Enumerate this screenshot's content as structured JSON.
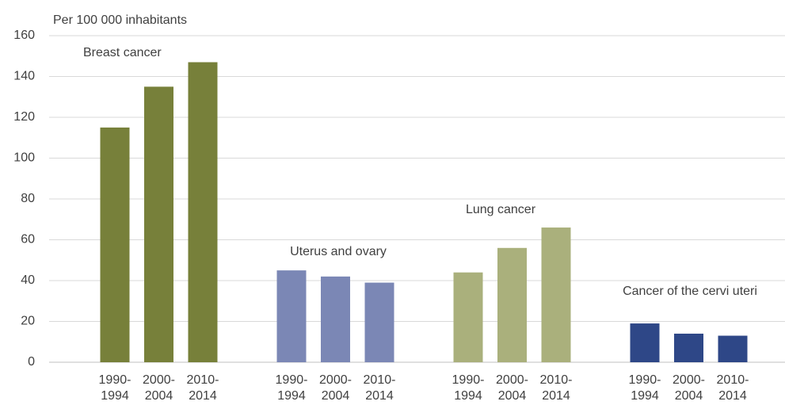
{
  "chart_data": {
    "type": "bar",
    "y_label": "Per 100 000 inhabitants",
    "categories": [
      "1990-\n1994",
      "2000-\n2004",
      "2010-\n2014"
    ],
    "series": [
      {
        "name": "Breast cancer",
        "color": "#77803a",
        "values": [
          115,
          135,
          147
        ]
      },
      {
        "name": "Uterus and ovary",
        "color": "#7b87b5",
        "values": [
          45,
          42,
          39
        ]
      },
      {
        "name": "Lung cancer",
        "color": "#aab07c",
        "values": [
          44,
          56,
          66
        ]
      },
      {
        "name": "Cancer of the cervi uteri",
        "color": "#2e4787",
        "values": [
          19,
          14,
          13
        ]
      }
    ],
    "ylim": [
      0,
      160
    ],
    "yticks": [
      0,
      20,
      40,
      60,
      80,
      100,
      120,
      140,
      160
    ],
    "grid": true
  }
}
